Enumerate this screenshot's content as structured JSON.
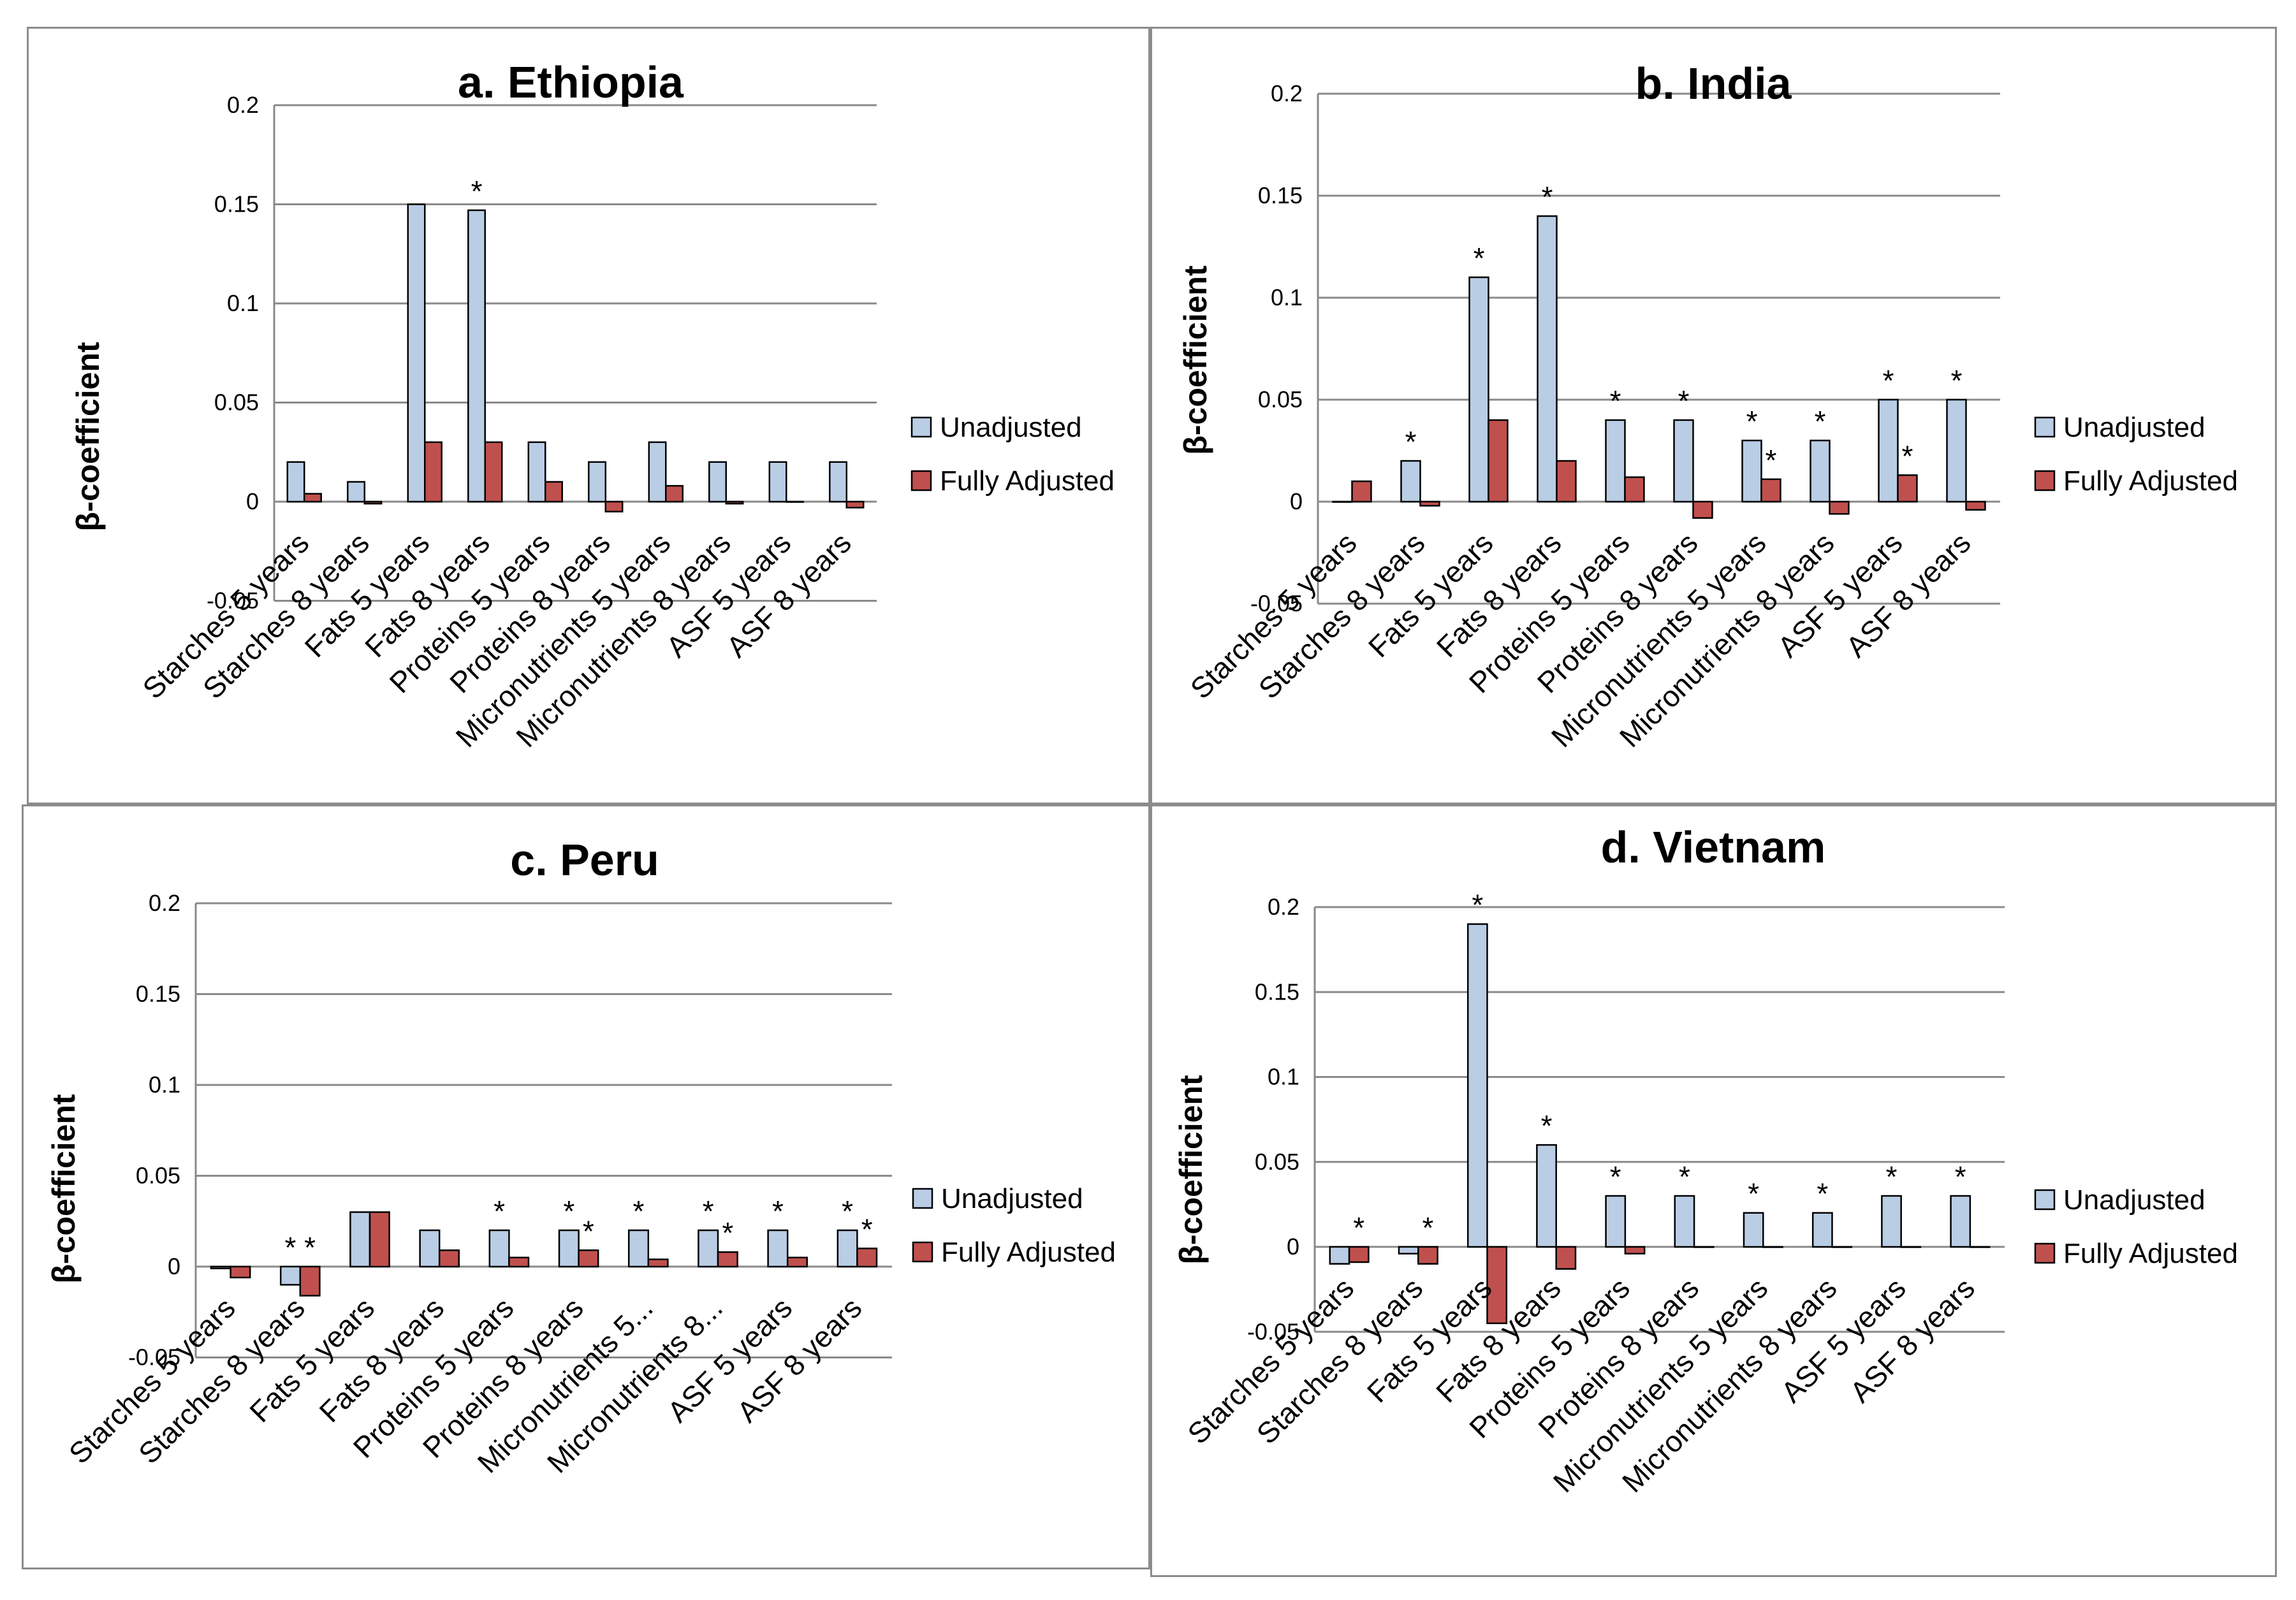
{
  "legend": {
    "unadjusted": "Unadjusted",
    "adjusted": "Fully Adjusted"
  },
  "colors": {
    "unadjusted": "#b9cde5",
    "adjusted": "#c0504d",
    "grid": "#8a8a8a"
  },
  "chart_data": [
    {
      "type": "bar",
      "title": "a. Ethiopia",
      "ylabel": "β-coefficient",
      "ylim": [
        -0.05,
        0.2
      ],
      "yticks": [
        "0.2",
        "0.15",
        "0.1",
        "0.05",
        "0",
        "-0.05"
      ],
      "categories": [
        "Starches 5 years",
        "Starches 8 years",
        "Fats 5 years",
        "Fats 8 years",
        "Proteins 5 years",
        "Proteins 8 years",
        "Micronutrients 5 years",
        "Micronutrients 8 years",
        "ASF 5 years",
        "ASF 8 years"
      ],
      "series": [
        {
          "name": "Unadjusted",
          "values": [
            0.02,
            0.01,
            0.15,
            0.147,
            0.03,
            0.02,
            0.03,
            0.02,
            0.02,
            0.02
          ],
          "stars": [
            0,
            0,
            0,
            1,
            0,
            0,
            0,
            0,
            0,
            0
          ]
        },
        {
          "name": "Fully Adjusted",
          "values": [
            0.004,
            -0.001,
            0.03,
            0.03,
            0.01,
            -0.005,
            0.008,
            -0.001,
            0.0,
            -0.003
          ],
          "stars": [
            0,
            0,
            0,
            0,
            0,
            0,
            0,
            0,
            0,
            0
          ]
        }
      ]
    },
    {
      "type": "bar",
      "title": "b. India",
      "ylabel": "β-coefficient",
      "ylim": [
        -0.05,
        0.2
      ],
      "yticks": [
        "0.2",
        "0.15",
        "0.1",
        "0.05",
        "0",
        "-0.05"
      ],
      "categories": [
        "Starches 5 years",
        "Starches 8 years",
        "Fats 5 years",
        "Fats 8 years",
        "Proteins 5 years",
        "Proteins 8 years",
        "Micronutrients 5 years",
        "Micronutrients 8 years",
        "ASF 5 years",
        "ASF 8 years"
      ],
      "series": [
        {
          "name": "Unadjusted",
          "values": [
            0.0,
            0.02,
            0.11,
            0.14,
            0.04,
            0.04,
            0.03,
            0.03,
            0.05,
            0.05
          ],
          "stars": [
            0,
            1,
            1,
            1,
            1,
            1,
            1,
            1,
            1,
            1
          ]
        },
        {
          "name": "Fully Adjusted",
          "values": [
            0.01,
            -0.002,
            0.04,
            0.02,
            0.012,
            -0.008,
            0.011,
            -0.006,
            0.013,
            -0.004
          ],
          "stars": [
            0,
            0,
            0,
            0,
            0,
            0,
            1,
            0,
            1,
            0
          ]
        }
      ]
    },
    {
      "type": "bar",
      "title": "c. Peru",
      "ylabel": "β-coefficient",
      "ylim": [
        -0.05,
        0.2
      ],
      "yticks": [
        "0.2",
        "0.15",
        "0.1",
        "0.05",
        "0",
        "-0.05"
      ],
      "categories": [
        "Starches 5 years",
        "Starches 8 years",
        "Fats 5 years",
        "Fats 8 years",
        "Proteins 5 years",
        "Proteins 8 years",
        "Micronutrients 5...",
        "Micronutrients 8...",
        "ASF 5 years",
        "ASF 8 years"
      ],
      "series": [
        {
          "name": "Unadjusted",
          "values": [
            -0.001,
            -0.01,
            0.03,
            0.02,
            0.02,
            0.02,
            0.02,
            0.02,
            0.02,
            0.02
          ],
          "stars": [
            0,
            1,
            0,
            0,
            1,
            1,
            1,
            1,
            1,
            1
          ]
        },
        {
          "name": "Fully Adjusted",
          "values": [
            -0.006,
            -0.016,
            0.03,
            0.009,
            0.005,
            0.009,
            0.004,
            0.008,
            0.005,
            0.01
          ],
          "stars": [
            0,
            1,
            0,
            0,
            0,
            1,
            0,
            1,
            0,
            1
          ]
        }
      ]
    },
    {
      "type": "bar",
      "title": "d. Vietnam",
      "ylabel": "β-coefficient",
      "ylim": [
        -0.05,
        0.2
      ],
      "yticks": [
        "0.2",
        "0.15",
        "0.1",
        "0.05",
        "0",
        "-0.05"
      ],
      "categories": [
        "Starches 5 years",
        "Starches 8 years",
        "Fats 5 years",
        "Fats 8 years",
        "Proteins 5 years",
        "Proteins 8 years",
        "Micronutrients 5 years",
        "Micronutrients 8 years",
        "ASF 5 years",
        "ASF 8 years"
      ],
      "series": [
        {
          "name": "Unadjusted",
          "values": [
            -0.01,
            -0.004,
            0.19,
            0.06,
            0.03,
            0.03,
            0.02,
            0.02,
            0.03,
            0.03
          ],
          "stars": [
            0,
            0,
            1,
            1,
            1,
            1,
            1,
            1,
            1,
            1
          ]
        },
        {
          "name": "Fully Adjusted",
          "values": [
            -0.009,
            -0.01,
            -0.045,
            -0.013,
            -0.004,
            0.0,
            0.0,
            0.0,
            0.0,
            0.0
          ],
          "stars": [
            1,
            1,
            0,
            0,
            0,
            0,
            0,
            0,
            0,
            0
          ]
        }
      ]
    }
  ]
}
